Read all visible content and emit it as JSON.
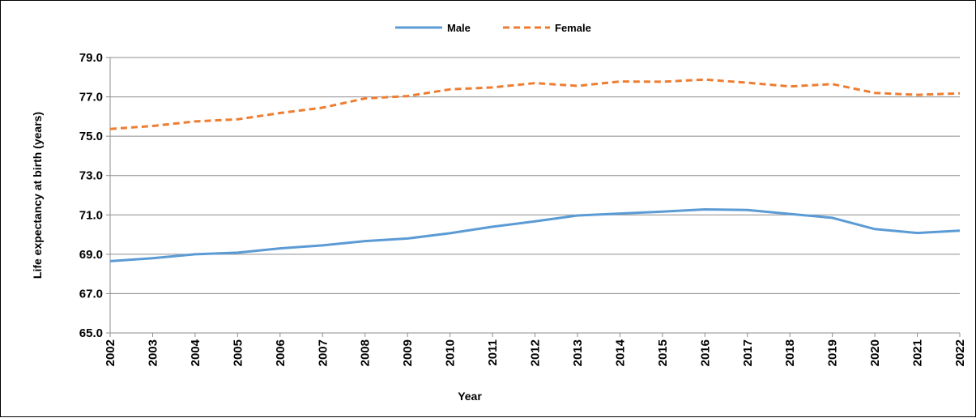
{
  "chart_data": {
    "type": "line",
    "xlabel": "Year",
    "ylabel": "Life expectancy at birth (years)",
    "ylim": [
      65.0,
      79.0
    ],
    "yticks": [
      "65.0",
      "67.0",
      "69.0",
      "71.0",
      "73.0",
      "75.0",
      "77.0",
      "79.0"
    ],
    "grid": true,
    "legend_position": "top-center",
    "x": [
      "2002",
      "2003",
      "2004",
      "2005",
      "2006",
      "2007",
      "2008",
      "2009",
      "2010",
      "2011",
      "2012",
      "2013",
      "2014",
      "2015",
      "2016",
      "2017",
      "2018",
      "2019",
      "2020",
      "2021",
      "2022"
    ],
    "series": [
      {
        "name": "Male",
        "color": "#5B9BD5",
        "style": "solid",
        "values": [
          68.65,
          68.8,
          69.0,
          69.08,
          69.3,
          69.45,
          69.67,
          69.8,
          70.07,
          70.4,
          70.67,
          70.97,
          71.07,
          71.17,
          71.28,
          71.25,
          71.05,
          70.85,
          70.28,
          70.08,
          70.2
        ]
      },
      {
        "name": "Female",
        "color": "#ED7D31",
        "style": "dashed",
        "values": [
          75.37,
          75.52,
          75.75,
          75.86,
          76.18,
          76.45,
          76.92,
          77.04,
          77.38,
          77.48,
          77.7,
          77.56,
          77.78,
          77.77,
          77.88,
          77.72,
          77.53,
          77.65,
          77.2,
          77.1,
          77.18
        ]
      }
    ]
  }
}
